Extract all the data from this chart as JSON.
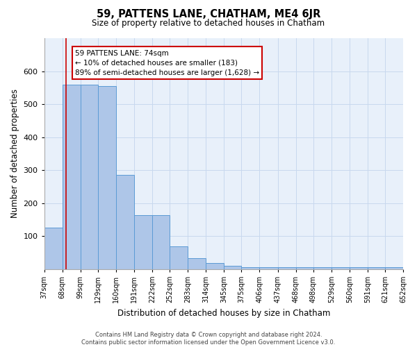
{
  "title": "59, PATTENS LANE, CHATHAM, ME4 6JR",
  "subtitle": "Size of property relative to detached houses in Chatham",
  "xlabel": "Distribution of detached houses by size in Chatham",
  "ylabel": "Number of detached properties",
  "bar_color": "#aec6e8",
  "bar_edge_color": "#5b9bd5",
  "grid_color": "#c8d8ee",
  "background_color": "#e8f0fa",
  "bin_edges": [
    37,
    68,
    99,
    129,
    160,
    191,
    222,
    252,
    283,
    314,
    345,
    375,
    406,
    437,
    468,
    498,
    529,
    560,
    591,
    621,
    652
  ],
  "bar_heights": [
    125,
    560,
    558,
    555,
    285,
    163,
    163,
    68,
    33,
    18,
    10,
    5,
    5,
    5,
    5,
    5,
    5,
    5,
    5,
    5
  ],
  "property_line_x": 74,
  "property_line_color": "#cc0000",
  "annotation_text": "59 PATTENS LANE: 74sqm\n← 10% of detached houses are smaller (183)\n89% of semi-detached houses are larger (1,628) →",
  "annotation_box_color": "#cc0000",
  "ylim": [
    0,
    700
  ],
  "yticks": [
    0,
    100,
    200,
    300,
    400,
    500,
    600,
    700
  ],
  "footer_line1": "Contains HM Land Registry data © Crown copyright and database right 2024.",
  "footer_line2": "Contains public sector information licensed under the Open Government Licence v3.0."
}
